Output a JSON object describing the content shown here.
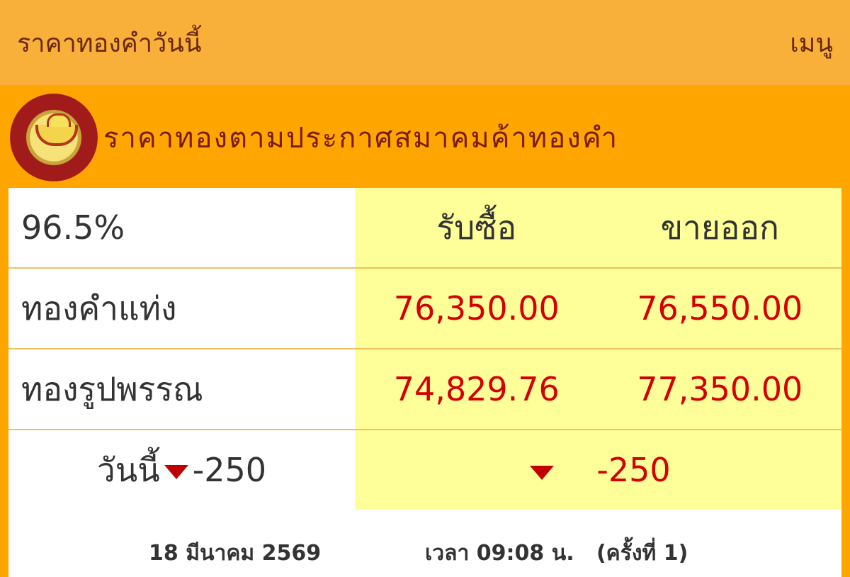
{
  "header": {
    "title": "ราคาทองคำวันนี้",
    "menu_label": "เมนู"
  },
  "panel": {
    "heading": "ราคาทองตามประกาศสมาคมค้าทองคำ",
    "logo_icon": "gold-traders-association-logo"
  },
  "table": {
    "purity": "96.5%",
    "buy_label": "รับซื้อ",
    "sell_label": "ขายออก",
    "rows": [
      {
        "label": "ทองคำแท่ง",
        "buy": "76,350.00",
        "sell": "76,550.00"
      },
      {
        "label": "ทองรูปพรรณ",
        "buy": "74,829.76",
        "sell": "77,350.00"
      }
    ],
    "change": {
      "label": "วันนี้",
      "left_value": "-250",
      "right_value": "-250",
      "direction": "down"
    }
  },
  "footer": {
    "date": "18 มีนาคม 2569",
    "time": "เวลา 09:08 น.   (ครั้งที่ 1)"
  },
  "colors": {
    "topbar": "#F9B03A",
    "panel": "#FFA500",
    "price": "#D40000",
    "highlight": "#FFFF99"
  }
}
